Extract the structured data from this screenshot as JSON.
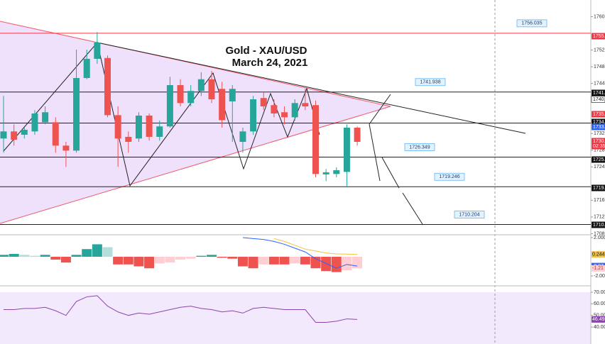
{
  "chart_data": [
    {
      "type": "candlestick",
      "title": "Gold - XAU/USD",
      "subtitle": "March 24, 2021",
      "open": [
        1730.8,
        1732.5,
        1731.7,
        1732.5,
        1734.7,
        1734.7,
        1729.1,
        1727.9,
        1745.3,
        1749.9,
        1750.1,
        1736.4,
        1731.2,
        1730.8,
        1736.3,
        1731.2,
        1733.7,
        1743.6,
        1739.3,
        1742.2,
        1745.0,
        1742.7,
        1739.7,
        1730.0,
        1732.5,
        1740.5,
        1738.8,
        1737.1,
        1735.9,
        1739.3,
        1738.8,
        1722.2,
        1722.3,
        1722.8,
        1733.4
      ],
      "high": [
        1741.0,
        1734.2,
        1733.4,
        1737.6,
        1738.5,
        1735.9,
        1730.0,
        1752.1,
        1752.1,
        1756.3,
        1750.7,
        1738.5,
        1732.5,
        1737.1,
        1736.8,
        1735.1,
        1745.6,
        1745.0,
        1743.6,
        1746.7,
        1747.0,
        1744.4,
        1743.6,
        1733.4,
        1741.0,
        1741.9,
        1740.2,
        1738.5,
        1740.2,
        1742.7,
        1739.9,
        1723.5,
        1723.9,
        1734.2,
        1733.7
      ],
      "low": [
        1727.4,
        1729.1,
        1730.8,
        1731.7,
        1734.2,
        1727.4,
        1724.0,
        1727.4,
        1745.0,
        1748.7,
        1735.9,
        1724.0,
        1727.4,
        1730.0,
        1730.3,
        1730.3,
        1733.4,
        1738.5,
        1738.5,
        1741.0,
        1739.3,
        1733.4,
        1730.0,
        1727.4,
        1731.7,
        1737.6,
        1735.9,
        1734.2,
        1735.1,
        1737.6,
        1721.5,
        1720.6,
        1721.5,
        1719.4,
        1729.1
      ],
      "close": [
        1732.5,
        1730.5,
        1732.9,
        1736.8,
        1737.1,
        1729.1,
        1727.9,
        1745.3,
        1749.9,
        1753.8,
        1736.4,
        1730.8,
        1730.0,
        1736.3,
        1731.2,
        1733.7,
        1743.6,
        1739.3,
        1742.2,
        1745.0,
        1740.2,
        1735.2,
        1742.7,
        1732.5,
        1740.2,
        1738.5,
        1736.8,
        1735.9,
        1739.3,
        1738.5,
        1722.3,
        1722.7,
        1723.2,
        1733.4,
        1730.0
      ],
      "up_color": "#26a69a",
      "down_color": "#ef5350",
      "ylim": [
        1707.9,
        1764
      ],
      "yticks": [
        {
          "value": 1760,
          "label": "1760.0"
        },
        {
          "value": 1752,
          "label": "1752.0"
        },
        {
          "value": 1748,
          "label": "1748.0"
        },
        {
          "value": 1744,
          "label": "1744.0"
        },
        {
          "value": 1732,
          "label": "1732.0"
        },
        {
          "value": 1728,
          "label": "1728.0"
        },
        {
          "value": 1724,
          "label": "1724.0"
        },
        {
          "value": 1716,
          "label": "1716.0"
        },
        {
          "value": 1712,
          "label": "1712.0"
        },
        {
          "value": 1708,
          "label": "1708.0"
        }
      ],
      "levels": [
        1756.035,
        1741.938,
        1734.5,
        1726.349,
        1719.246,
        1710.204
      ],
      "level_colors": [
        "#f23645",
        "#222222",
        "#222222",
        "#222222",
        "#222222",
        "#222222"
      ],
      "callouts": [
        1756.035,
        1741.938,
        1726.349,
        1719.246,
        1710.204
      ],
      "price_tags": [
        "1755.",
        "1741.",
        "1740.",
        "1735.",
        "1734.",
        "1733.",
        "1730.",
        "02:35",
        "1725.",
        "1719.",
        "1710."
      ]
    },
    {
      "type": "macd",
      "histogram": [
        0.2,
        0.3,
        0.2,
        0.1,
        0.2,
        -0.3,
        -0.6,
        0.2,
        0.8,
        1.3,
        1.0,
        -0.8,
        -0.8,
        -1.0,
        -1.2,
        -0.7,
        -0.6,
        -0.3,
        -0.2,
        0.1,
        0.2,
        -0.1,
        -0.2,
        -1.0,
        -1.2,
        -0.8,
        -0.8,
        -0.8,
        -0.7,
        -0.8,
        -1.2,
        -1.5,
        -1.6,
        -1.4,
        -1.21
      ],
      "macd": [
        null,
        null,
        null,
        null,
        null,
        null,
        null,
        null,
        null,
        null,
        null,
        null,
        null,
        null,
        null,
        null,
        null,
        null,
        null,
        null,
        null,
        null,
        null,
        2.0,
        1.9,
        1.8,
        1.6,
        1.3,
        0.9,
        0.5,
        -0.2,
        -0.7,
        -1.2,
        -0.8,
        -0.97
      ],
      "signal": [
        null,
        null,
        null,
        null,
        null,
        null,
        null,
        null,
        null,
        null,
        null,
        null,
        null,
        null,
        null,
        null,
        null,
        null,
        null,
        null,
        null,
        null,
        null,
        null,
        null,
        null,
        1.9,
        1.6,
        1.2,
        0.8,
        0.6,
        0.4,
        0.3,
        0.28,
        0.244
      ],
      "hist_colors": [
        "#26a69a",
        "#b2dfdb",
        "#ef5350",
        "#ffcdd2"
      ],
      "macd_color": "#2962ff",
      "signal_color": "#f0c040",
      "ylim": [
        -2.81,
        2.22
      ],
      "yticks": [
        {
          "value": 2,
          "label": "2.000"
        },
        {
          "value": -2,
          "label": "-2.000"
        }
      ]
    },
    {
      "type": "line",
      "values": [
        55,
        55,
        56,
        56,
        57,
        54,
        50,
        62,
        66,
        67,
        58,
        53,
        50,
        52,
        51,
        53,
        55,
        57,
        58,
        56,
        55,
        53,
        54,
        52,
        56,
        57,
        56,
        55,
        55,
        55,
        44,
        44,
        45,
        47,
        46.49
      ],
      "color": "#8e44ad",
      "ylim": [
        25.3,
        74.3
      ],
      "yticks": [
        {
          "value": 70,
          "label": "70.00"
        },
        {
          "value": 60,
          "label": "60.00"
        },
        {
          "value": 50,
          "label": "50.00"
        },
        {
          "value": 40,
          "label": "40.00"
        }
      ]
    }
  ]
}
